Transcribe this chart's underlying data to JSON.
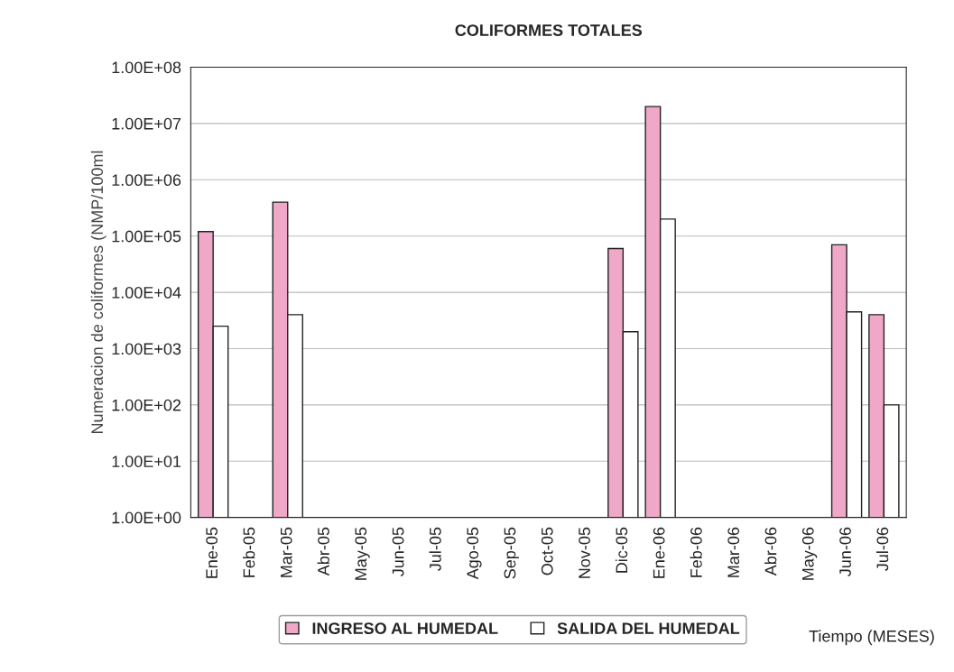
{
  "chart_data": {
    "type": "bar",
    "title": "COLIFORMES TOTALES",
    "xlabel": "Tiempo (MESES)",
    "ylabel": "Numeracion de coliformes (NMP/100ml",
    "categories": [
      "Ene-05",
      "Feb-05",
      "Mar-05",
      "Abr-05",
      "May-05",
      "Jun-05",
      "Jul-05",
      "Ago-05",
      "Sep-05",
      "Oct-05",
      "Nov-05",
      "Dic-05",
      "Ene-06",
      "Feb-06",
      "Mar-06",
      "Abr-06",
      "May-06",
      "Jun-06",
      "Jul-06"
    ],
    "series": [
      {
        "name": "INGRESO AL HUMEDAL",
        "color": "#f0a8c8",
        "values": [
          120000,
          null,
          400000,
          null,
          null,
          null,
          null,
          null,
          null,
          null,
          null,
          60000,
          20000000,
          null,
          null,
          null,
          null,
          70000,
          4000
        ]
      },
      {
        "name": "SALIDA DEL HUMEDAL",
        "color": "#ffffff",
        "values": [
          2500,
          null,
          4000,
          null,
          null,
          null,
          null,
          null,
          null,
          null,
          null,
          2000,
          200000,
          null,
          null,
          null,
          null,
          4500,
          100
        ]
      }
    ],
    "log": true,
    "ylim": [
      1,
      100000000
    ],
    "yticks": [
      {
        "value": 1,
        "label": "1.00E+00"
      },
      {
        "value": 10,
        "label": "1.00E+01"
      },
      {
        "value": 100,
        "label": "1.00E+02"
      },
      {
        "value": 1000,
        "label": "1.00E+03"
      },
      {
        "value": 10000,
        "label": "1.00E+04"
      },
      {
        "value": 100000,
        "label": "1.00E+05"
      },
      {
        "value": 1000000,
        "label": "1.00E+06"
      },
      {
        "value": 10000000,
        "label": "1.00E+07"
      },
      {
        "value": 100000000,
        "label": "1.00E+08"
      }
    ],
    "grid": "y",
    "legend": "bottom"
  }
}
